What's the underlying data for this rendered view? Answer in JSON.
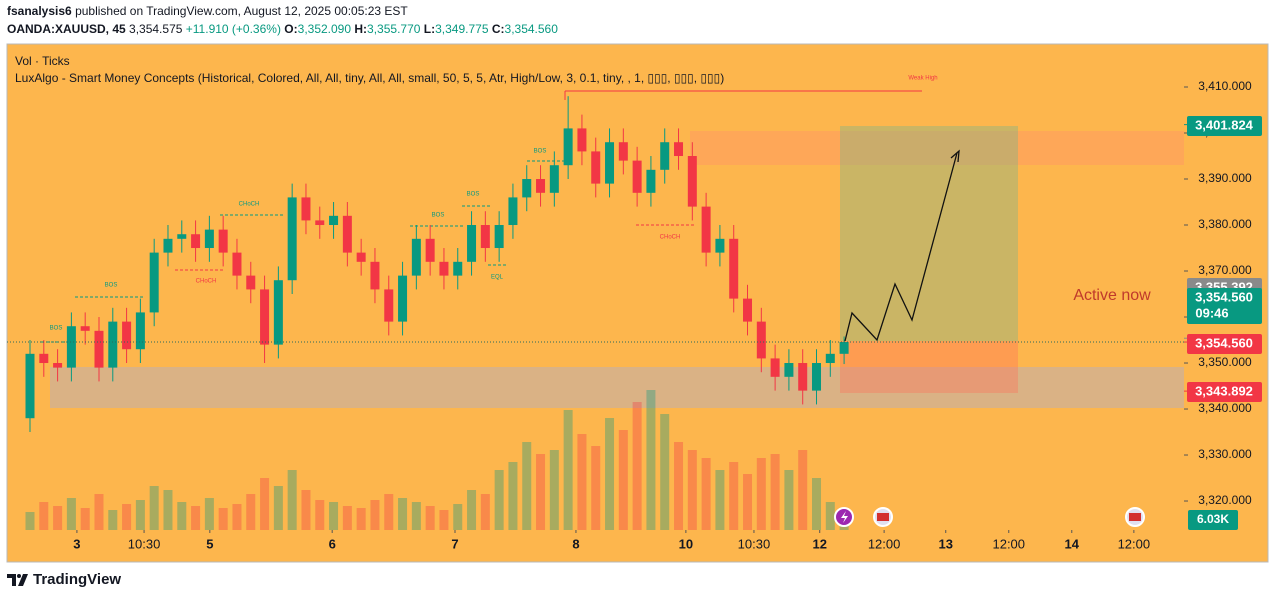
{
  "header": {
    "author": "fsanalysis6",
    "published": "published on TradingView.com, August 12, 2025 00:05:23 EST",
    "symbol": "OANDA:XAUUSD, 45",
    "price": "3,354.575",
    "change": "+11.910 (+0.36%)",
    "ohlc": [
      {
        "key": "O:",
        "value": "3,352.090"
      },
      {
        "key": "H:",
        "value": "3,355.770"
      },
      {
        "key": "L:",
        "value": "3,349.775"
      },
      {
        "key": "C:",
        "value": "3,354.560"
      }
    ]
  },
  "indicators": [
    "Vol · Ticks",
    "LuxAlgo - Smart Money Concepts (Historical, Colored, All, All, tiny, All, All, small, 50, 5, 5, Atr, High/Low, 3, 0.1, tiny, , 1, ▯▯▯, ▯▯▯, ▯▯▯)"
  ],
  "annotations": {
    "weak_high": "Weak High",
    "bos": "BOS",
    "choch": "CHoCH",
    "eql": "EQL",
    "active_now": "Active now"
  },
  "footer": {
    "brand": "TradingView"
  },
  "chart_data": [
    {
      "type": "candlestick",
      "up_color": "#089981",
      "down_color": "#f23645",
      "grid": false,
      "x": [
        0,
        3,
        6,
        9,
        12,
        15,
        18,
        21,
        24,
        27,
        30,
        33,
        36,
        39,
        42,
        45,
        48,
        51,
        54,
        57,
        60,
        63,
        66,
        69,
        72,
        75,
        78,
        81,
        84,
        87,
        90,
        93,
        96,
        99,
        102,
        105,
        108,
        111,
        114,
        117,
        120,
        123,
        126,
        129,
        132,
        135,
        138,
        141,
        144,
        147,
        150,
        153,
        156,
        159,
        162,
        165,
        168,
        171,
        174,
        177
      ],
      "open": [
        3338,
        3352,
        3350,
        3349,
        3358,
        3357,
        3349,
        3359,
        3353,
        3361,
        3374,
        3377,
        3378,
        3375,
        3379,
        3374,
        3369,
        3366,
        3354,
        3368,
        3386,
        3381,
        3380,
        3382,
        3374,
        3372,
        3366,
        3359,
        3369,
        3377,
        3372,
        3369,
        3372,
        3380,
        3375,
        3380,
        3386,
        3390,
        3387,
        3393,
        3401,
        3396,
        3389,
        3398,
        3394,
        3387,
        3392,
        3398,
        3395,
        3384,
        3374,
        3377,
        3364,
        3359,
        3351,
        3347,
        3350,
        3344,
        3350,
        3352
      ],
      "high": [
        3355,
        3355,
        3353,
        3361,
        3361,
        3360,
        3362,
        3362,
        3364,
        3377,
        3380,
        3381,
        3381,
        3382,
        3382,
        3377,
        3372,
        3369,
        3371,
        3389,
        3389,
        3384,
        3385,
        3385,
        3377,
        3375,
        3369,
        3372,
        3380,
        3380,
        3375,
        3375,
        3383,
        3383,
        3383,
        3389,
        3393,
        3393,
        3396,
        3408,
        3404,
        3399,
        3401,
        3401,
        3397,
        3395,
        3401,
        3401,
        3398,
        3387,
        3380,
        3380,
        3367,
        3362,
        3354,
        3353,
        3353,
        3353,
        3355,
        3355.77
      ],
      "low": [
        3335,
        3347,
        3346,
        3346,
        3354,
        3346,
        3346,
        3350,
        3350,
        3358,
        3371,
        3374,
        3372,
        3372,
        3371,
        3366,
        3363,
        3350,
        3351,
        3365,
        3378,
        3377,
        3377,
        3371,
        3369,
        3363,
        3356,
        3356,
        3366,
        3369,
        3366,
        3366,
        3369,
        3372,
        3372,
        3377,
        3383,
        3384,
        3384,
        3390,
        3393,
        3386,
        3386,
        3391,
        3384,
        3384,
        3389,
        3392,
        3381,
        3371,
        3371,
        3361,
        3356,
        3348,
        3344,
        3344,
        3341,
        3341,
        3347,
        3349.775
      ],
      "close": [
        3352,
        3350,
        3349,
        3358,
        3357,
        3349,
        3359,
        3353,
        3361,
        3374,
        3377,
        3378,
        3375,
        3379,
        3374,
        3369,
        3366,
        3354,
        3368,
        3386,
        3381,
        3380,
        3382,
        3374,
        3372,
        3366,
        3359,
        3369,
        3377,
        3372,
        3369,
        3372,
        3380,
        3375,
        3380,
        3386,
        3390,
        3387,
        3393,
        3401,
        3396,
        3389,
        3398,
        3394,
        3387,
        3392,
        3398,
        3395,
        3384,
        3374,
        3377,
        3364,
        3359,
        3351,
        3347,
        3350,
        3344,
        3350,
        3352,
        3354.56
      ],
      "xlim": [
        -5,
        250.9
      ],
      "xticks": [
        {
          "value": 10.2,
          "label": "3"
        },
        {
          "value": 24.8,
          "label": "10:30"
        },
        {
          "value": 39.1,
          "label": "5"
        },
        {
          "value": 65.7,
          "label": "6"
        },
        {
          "value": 92.4,
          "label": "7"
        },
        {
          "value": 118.7,
          "label": "8"
        },
        {
          "value": 142.6,
          "label": "10"
        },
        {
          "value": 157.4,
          "label": "10:30"
        },
        {
          "value": 171.7,
          "label": "12"
        },
        {
          "value": 185.7,
          "label": "12:00"
        },
        {
          "value": 199.1,
          "label": "13"
        },
        {
          "value": 212.8,
          "label": "12:00"
        },
        {
          "value": 226.5,
          "label": "14"
        },
        {
          "value": 240,
          "label": "12:00"
        }
      ],
      "ylim": [
        3313.7,
        3419.35
      ],
      "yticks": [
        {
          "value": 3320,
          "label": "3,320.000"
        },
        {
          "value": 3330,
          "label": "3,330.000"
        },
        {
          "value": 3340,
          "label": "3,340.000"
        },
        {
          "value": 3350,
          "label": "3,350.000"
        },
        {
          "value": 3360,
          "label": "3,360.000"
        },
        {
          "value": 3370,
          "label": "3,370.000"
        },
        {
          "value": 3380,
          "label": "3,380.000"
        },
        {
          "value": 3390,
          "label": "3,390.000"
        },
        {
          "value": 3400,
          "label": "3,400.000"
        },
        {
          "value": 3410,
          "label": "3,410.000"
        }
      ],
      "price_labels": [
        {
          "value": 3401.824,
          "label": "3,401.824",
          "color": "#089981"
        },
        {
          "value": 3355.392,
          "label": "3,355.392",
          "color": "#8a8a8a"
        },
        {
          "value": 3354.56,
          "label": "3,354.560",
          "color": "#089981"
        },
        {
          "value": 3354.56,
          "label": "3,354.560",
          "color": "#f23645"
        },
        {
          "value": 3343.892,
          "label": "3,343.892",
          "color": "#f23645"
        }
      ],
      "countdown": "09:46"
    },
    {
      "type": "bar",
      "name": "Vol · Ticks",
      "up_color": "rgba(8,153,129,0.35)",
      "down_color": "rgba(242,54,69,0.35)",
      "x": [
        0,
        3,
        6,
        9,
        12,
        15,
        18,
        21,
        24,
        27,
        30,
        33,
        36,
        39,
        42,
        45,
        48,
        51,
        54,
        57,
        60,
        63,
        66,
        69,
        72,
        75,
        78,
        81,
        84,
        87,
        90,
        93,
        96,
        99,
        102,
        105,
        108,
        111,
        114,
        117,
        120,
        123,
        126,
        129,
        132,
        135,
        138,
        141,
        144,
        147,
        150,
        153,
        156,
        159,
        162,
        165,
        168,
        171,
        174,
        177
      ],
      "values": [
        9000,
        14000,
        12000,
        16000,
        11000,
        18000,
        10000,
        13000,
        15000,
        22000,
        20000,
        14000,
        12000,
        16000,
        11000,
        13000,
        18000,
        26000,
        22000,
        30000,
        20000,
        15000,
        14000,
        12000,
        11000,
        15000,
        18000,
        16000,
        14000,
        12000,
        10000,
        13000,
        20000,
        18000,
        30000,
        34000,
        44000,
        38000,
        40000,
        60000,
        48000,
        42000,
        56000,
        50000,
        64000,
        70000,
        58000,
        44000,
        40000,
        36000,
        30000,
        34000,
        28000,
        36000,
        38000,
        30000,
        40000,
        26000,
        14000,
        6030
      ],
      "ylim": [
        0,
        80000
      ],
      "current_value": 6030,
      "current_label": "6.03K",
      "label_color": "#089981"
    }
  ]
}
